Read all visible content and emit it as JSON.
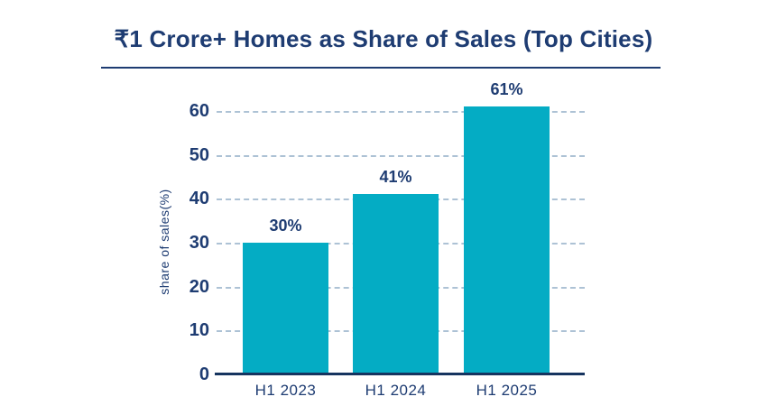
{
  "header": {
    "title": "₹1 Crore+ Homes as Share of Sales (Top Cities)"
  },
  "chart_data": {
    "type": "bar",
    "title": "₹1 Crore+ Homes as Share of Sales (Top Cities)",
    "categories": [
      "H1 2023",
      "H1 2024",
      "H1 2025"
    ],
    "values": [
      30,
      41,
      61
    ],
    "data_labels": [
      "30%",
      "41%",
      "61%"
    ],
    "xlabel": "",
    "ylabel": "share of sales(%)",
    "yticks": [
      0,
      10,
      20,
      30,
      40,
      50,
      60
    ],
    "ylim": [
      0,
      65
    ],
    "grid": "horizontal-dashed",
    "legend": "none",
    "colors": {
      "bar": "#04ACC4",
      "text": "#1E3C72",
      "gridline": "#ADC2D5",
      "axis_line": "#16345F",
      "background": "#FFFFFF"
    }
  }
}
